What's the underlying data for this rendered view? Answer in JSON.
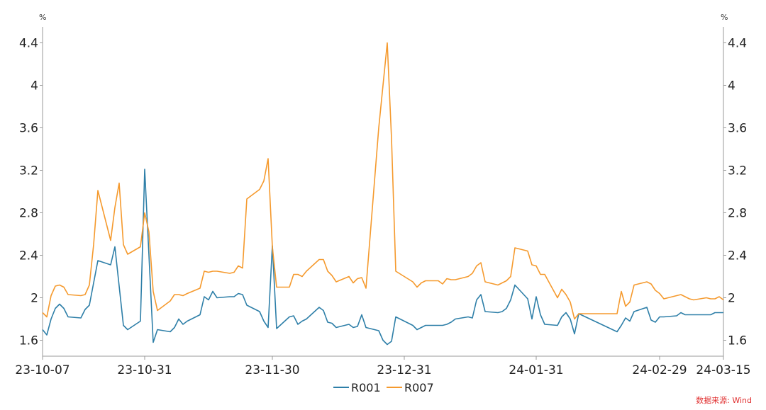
{
  "chart_data": {
    "type": "line",
    "xlabel": "",
    "ylabel_left_unit": "%",
    "ylabel_right_unit": "%",
    "ylim": [
      1.45,
      4.55
    ],
    "yticks": [
      1.6,
      2,
      2.4,
      2.8,
      3.2,
      3.6,
      4,
      4.4
    ],
    "ytick_labels": [
      "1.6",
      "2",
      "2.4",
      "2.8",
      "3.2",
      "3.6",
      "4",
      "4.4"
    ],
    "xlim": [
      "2023-10-07",
      "2024-03-15"
    ],
    "xticks": [
      "2023-10-07",
      "2023-10-31",
      "2023-11-30",
      "2023-12-31",
      "2024-01-31",
      "2024-02-29",
      "2024-03-15"
    ],
    "xtick_labels": [
      "23-10-07",
      "23-10-31",
      "23-11-30",
      "23-12-31",
      "24-01-31",
      "24-02-29",
      "24-03-15"
    ],
    "legend_position": "bottom-center",
    "series": [
      {
        "name": "R001",
        "color": "#2e7fa8",
        "points": [
          [
            "2023-10-07",
            1.7
          ],
          [
            "2023-10-08",
            1.65
          ],
          [
            "2023-10-09",
            1.8
          ],
          [
            "2023-10-10",
            1.9
          ],
          [
            "2023-10-11",
            1.94
          ],
          [
            "2023-10-12",
            1.9
          ],
          [
            "2023-10-13",
            1.82
          ],
          [
            "2023-10-16",
            1.81
          ],
          [
            "2023-10-17",
            1.89
          ],
          [
            "2023-10-18",
            1.93
          ],
          [
            "2023-10-20",
            2.35
          ],
          [
            "2023-10-23",
            2.31
          ],
          [
            "2023-10-24",
            2.48
          ],
          [
            "2023-10-26",
            1.74
          ],
          [
            "2023-10-27",
            1.7
          ],
          [
            "2023-10-30",
            1.78
          ],
          [
            "2023-10-31",
            3.21
          ],
          [
            "2023-11-01",
            2.4
          ],
          [
            "2023-11-02",
            1.58
          ],
          [
            "2023-11-03",
            1.7
          ],
          [
            "2023-11-06",
            1.68
          ],
          [
            "2023-11-07",
            1.72
          ],
          [
            "2023-11-08",
            1.8
          ],
          [
            "2023-11-09",
            1.75
          ],
          [
            "2023-11-10",
            1.78
          ],
          [
            "2023-11-13",
            1.84
          ],
          [
            "2023-11-14",
            2.01
          ],
          [
            "2023-11-15",
            1.98
          ],
          [
            "2023-11-16",
            2.06
          ],
          [
            "2023-11-17",
            2.0
          ],
          [
            "2023-11-20",
            2.01
          ],
          [
            "2023-11-21",
            2.01
          ],
          [
            "2023-11-22",
            2.04
          ],
          [
            "2023-11-23",
            2.03
          ],
          [
            "2023-11-24",
            1.93
          ],
          [
            "2023-11-27",
            1.87
          ],
          [
            "2023-11-28",
            1.78
          ],
          [
            "2023-11-29",
            1.72
          ],
          [
            "2023-11-30",
            2.49
          ],
          [
            "2023-12-01",
            1.71
          ],
          [
            "2023-12-04",
            1.82
          ],
          [
            "2023-12-05",
            1.83
          ],
          [
            "2023-12-06",
            1.75
          ],
          [
            "2023-12-07",
            1.78
          ],
          [
            "2023-12-08",
            1.8
          ],
          [
            "2023-12-11",
            1.91
          ],
          [
            "2023-12-12",
            1.88
          ],
          [
            "2023-12-13",
            1.77
          ],
          [
            "2023-12-14",
            1.76
          ],
          [
            "2023-12-15",
            1.72
          ],
          [
            "2023-12-18",
            1.75
          ],
          [
            "2023-12-19",
            1.72
          ],
          [
            "2023-12-20",
            1.73
          ],
          [
            "2023-12-21",
            1.84
          ],
          [
            "2023-12-22",
            1.72
          ],
          [
            "2023-12-25",
            1.69
          ],
          [
            "2023-12-26",
            1.6
          ],
          [
            "2023-12-27",
            1.56
          ],
          [
            "2023-12-28",
            1.59
          ],
          [
            "2023-12-29",
            1.82
          ],
          [
            "2024-01-02",
            1.74
          ],
          [
            "2024-01-03",
            1.7
          ],
          [
            "2024-01-04",
            1.72
          ],
          [
            "2024-01-05",
            1.74
          ],
          [
            "2024-01-08",
            1.74
          ],
          [
            "2024-01-09",
            1.74
          ],
          [
            "2024-01-10",
            1.75
          ],
          [
            "2024-01-11",
            1.77
          ],
          [
            "2024-01-12",
            1.8
          ],
          [
            "2024-01-15",
            1.82
          ],
          [
            "2024-01-16",
            1.81
          ],
          [
            "2024-01-17",
            1.98
          ],
          [
            "2024-01-18",
            2.03
          ],
          [
            "2024-01-19",
            1.87
          ],
          [
            "2024-01-22",
            1.86
          ],
          [
            "2024-01-23",
            1.87
          ],
          [
            "2024-01-24",
            1.9
          ],
          [
            "2024-01-25",
            1.98
          ],
          [
            "2024-01-26",
            2.12
          ],
          [
            "2024-01-29",
            1.99
          ],
          [
            "2024-01-30",
            1.8
          ],
          [
            "2024-01-31",
            2.01
          ],
          [
            "2024-02-01",
            1.84
          ],
          [
            "2024-02-02",
            1.75
          ],
          [
            "2024-02-05",
            1.74
          ],
          [
            "2024-02-06",
            1.82
          ],
          [
            "2024-02-07",
            1.86
          ],
          [
            "2024-02-08",
            1.8
          ],
          [
            "2024-02-09",
            1.66
          ],
          [
            "2024-02-10",
            1.85
          ],
          [
            "2024-02-19",
            1.68
          ],
          [
            "2024-02-20",
            1.74
          ],
          [
            "2024-02-21",
            1.81
          ],
          [
            "2024-02-22",
            1.78
          ],
          [
            "2024-02-23",
            1.87
          ],
          [
            "2024-02-26",
            1.91
          ],
          [
            "2024-02-27",
            1.79
          ],
          [
            "2024-02-28",
            1.77
          ],
          [
            "2024-02-29",
            1.82
          ],
          [
            "2024-03-01",
            1.82
          ],
          [
            "2024-03-04",
            1.83
          ],
          [
            "2024-03-05",
            1.86
          ],
          [
            "2024-03-06",
            1.84
          ],
          [
            "2024-03-07",
            1.84
          ],
          [
            "2024-03-08",
            1.84
          ],
          [
            "2024-03-11",
            1.84
          ],
          [
            "2024-03-12",
            1.84
          ],
          [
            "2024-03-13",
            1.86
          ],
          [
            "2024-03-14",
            1.86
          ],
          [
            "2024-03-15",
            1.86
          ]
        ]
      },
      {
        "name": "R007",
        "color": "#f59a2e",
        "points": [
          [
            "2023-10-07",
            1.86
          ],
          [
            "2023-10-08",
            1.82
          ],
          [
            "2023-10-09",
            2.02
          ],
          [
            "2023-10-10",
            2.11
          ],
          [
            "2023-10-11",
            2.12
          ],
          [
            "2023-10-12",
            2.1
          ],
          [
            "2023-10-13",
            2.03
          ],
          [
            "2023-10-16",
            2.02
          ],
          [
            "2023-10-17",
            2.03
          ],
          [
            "2023-10-18",
            2.12
          ],
          [
            "2023-10-19",
            2.5
          ],
          [
            "2023-10-20",
            3.01
          ],
          [
            "2023-10-23",
            2.54
          ],
          [
            "2023-10-24",
            2.85
          ],
          [
            "2023-10-25",
            3.08
          ],
          [
            "2023-10-26",
            2.5
          ],
          [
            "2023-10-27",
            2.41
          ],
          [
            "2023-10-30",
            2.48
          ],
          [
            "2023-10-31",
            2.8
          ],
          [
            "2023-11-01",
            2.62
          ],
          [
            "2023-11-02",
            2.06
          ],
          [
            "2023-11-03",
            1.88
          ],
          [
            "2023-11-06",
            1.97
          ],
          [
            "2023-11-07",
            2.03
          ],
          [
            "2023-11-08",
            2.03
          ],
          [
            "2023-11-09",
            2.02
          ],
          [
            "2023-11-10",
            2.04
          ],
          [
            "2023-11-13",
            2.09
          ],
          [
            "2023-11-14",
            2.25
          ],
          [
            "2023-11-15",
            2.24
          ],
          [
            "2023-11-16",
            2.25
          ],
          [
            "2023-11-17",
            2.25
          ],
          [
            "2023-11-20",
            2.23
          ],
          [
            "2023-11-21",
            2.24
          ],
          [
            "2023-11-22",
            2.3
          ],
          [
            "2023-11-23",
            2.28
          ],
          [
            "2023-11-24",
            2.93
          ],
          [
            "2023-11-27",
            3.02
          ],
          [
            "2023-11-28",
            3.1
          ],
          [
            "2023-11-29",
            3.31
          ],
          [
            "2023-11-30",
            2.48
          ],
          [
            "2023-12-01",
            2.1
          ],
          [
            "2023-12-04",
            2.1
          ],
          [
            "2023-12-05",
            2.22
          ],
          [
            "2023-12-06",
            2.22
          ],
          [
            "2023-12-07",
            2.2
          ],
          [
            "2023-12-08",
            2.25
          ],
          [
            "2023-12-11",
            2.36
          ],
          [
            "2023-12-12",
            2.36
          ],
          [
            "2023-12-13",
            2.25
          ],
          [
            "2023-12-14",
            2.21
          ],
          [
            "2023-12-15",
            2.15
          ],
          [
            "2023-12-18",
            2.2
          ],
          [
            "2023-12-19",
            2.14
          ],
          [
            "2023-12-20",
            2.18
          ],
          [
            "2023-12-21",
            2.19
          ],
          [
            "2023-12-22",
            2.09
          ],
          [
            "2023-12-25",
            3.6
          ],
          [
            "2023-12-26",
            4.0
          ],
          [
            "2023-12-27",
            4.4
          ],
          [
            "2023-12-28",
            3.5
          ],
          [
            "2023-12-29",
            2.25
          ],
          [
            "2024-01-02",
            2.15
          ],
          [
            "2024-01-03",
            2.1
          ],
          [
            "2024-01-04",
            2.14
          ],
          [
            "2024-01-05",
            2.16
          ],
          [
            "2024-01-08",
            2.16
          ],
          [
            "2024-01-09",
            2.13
          ],
          [
            "2024-01-10",
            2.18
          ],
          [
            "2024-01-11",
            2.17
          ],
          [
            "2024-01-12",
            2.17
          ],
          [
            "2024-01-15",
            2.2
          ],
          [
            "2024-01-16",
            2.23
          ],
          [
            "2024-01-17",
            2.3
          ],
          [
            "2024-01-18",
            2.33
          ],
          [
            "2024-01-19",
            2.15
          ],
          [
            "2024-01-22",
            2.12
          ],
          [
            "2024-01-23",
            2.14
          ],
          [
            "2024-01-24",
            2.16
          ],
          [
            "2024-01-25",
            2.2
          ],
          [
            "2024-01-26",
            2.47
          ],
          [
            "2024-01-29",
            2.44
          ],
          [
            "2024-01-30",
            2.31
          ],
          [
            "2024-01-31",
            2.3
          ],
          [
            "2024-02-01",
            2.22
          ],
          [
            "2024-02-02",
            2.22
          ],
          [
            "2024-02-05",
            2.0
          ],
          [
            "2024-02-06",
            2.08
          ],
          [
            "2024-02-07",
            2.03
          ],
          [
            "2024-02-08",
            1.96
          ],
          [
            "2024-02-09",
            1.8
          ],
          [
            "2024-02-10",
            1.85
          ],
          [
            "2024-02-19",
            1.85
          ],
          [
            "2024-02-20",
            2.06
          ],
          [
            "2024-02-21",
            1.92
          ],
          [
            "2024-02-22",
            1.96
          ],
          [
            "2024-02-23",
            2.12
          ],
          [
            "2024-02-26",
            2.15
          ],
          [
            "2024-02-27",
            2.13
          ],
          [
            "2024-02-28",
            2.07
          ],
          [
            "2024-02-29",
            2.04
          ],
          [
            "2024-03-01",
            1.99
          ],
          [
            "2024-03-04",
            2.02
          ],
          [
            "2024-03-05",
            2.03
          ],
          [
            "2024-03-06",
            2.01
          ],
          [
            "2024-03-07",
            1.99
          ],
          [
            "2024-03-08",
            1.98
          ],
          [
            "2024-03-11",
            2.0
          ],
          [
            "2024-03-12",
            1.99
          ],
          [
            "2024-03-13",
            1.99
          ],
          [
            "2024-03-14",
            2.01
          ],
          [
            "2024-03-15",
            1.98
          ]
        ]
      }
    ]
  },
  "source_note": "数据来源: Wind"
}
